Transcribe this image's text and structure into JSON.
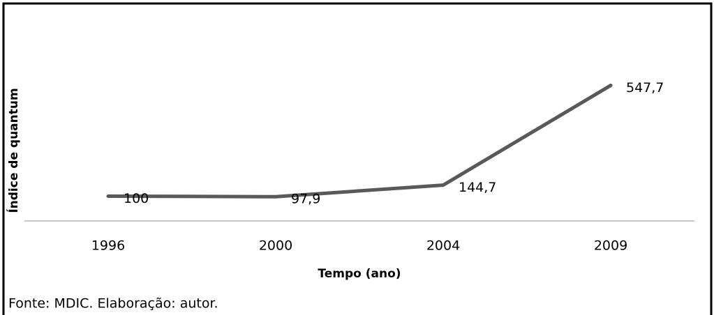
{
  "chart_data": {
    "type": "line",
    "categories": [
      "1996",
      "2000",
      "2004",
      "2009"
    ],
    "series": [
      {
        "name": "Índice de quantum",
        "color": "#595959",
        "values": [
          100,
          97.9,
          144.7,
          547.7
        ],
        "value_labels": [
          "100",
          "97,9",
          "144,7",
          "547,7"
        ]
      }
    ],
    "ylim": [
      0,
      600
    ],
    "xlabel": "Tempo (ano)",
    "ylabel": "Índice de quantum",
    "source": "Fonte:  MDIC. Elaboração: autor."
  }
}
